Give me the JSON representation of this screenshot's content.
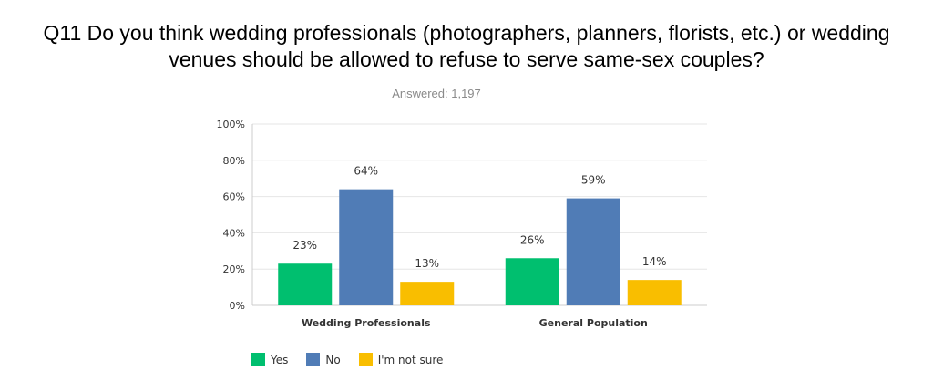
{
  "chart_data": {
    "type": "bar",
    "title_lines": [
      "Q11 Do you think wedding professionals (photographers, planners, florists, etc.) or wedding",
      "venues should be allowed to refuse to serve same-sex couples?"
    ],
    "subtitle": "Answered: 1,197",
    "categories": [
      "Wedding Professionals",
      "General Population"
    ],
    "series": [
      {
        "name": "Yes",
        "values": [
          23,
          26
        ],
        "labels": [
          "23%",
          "26%"
        ],
        "color": "#00bf6f"
      },
      {
        "name": "No",
        "values": [
          64,
          59
        ],
        "labels": [
          "64%",
          "59%"
        ],
        "color": "#507cb6"
      },
      {
        "name": "I'm not sure",
        "values": [
          13,
          14
        ],
        "labels": [
          "13%",
          "14%"
        ],
        "color": "#f9be00"
      }
    ],
    "ylim": [
      0,
      100
    ],
    "yticks": [
      {
        "value": 0,
        "label": "0%"
      },
      {
        "value": 20,
        "label": "20%"
      },
      {
        "value": 40,
        "label": "40%"
      },
      {
        "value": 60,
        "label": "60%"
      },
      {
        "value": 80,
        "label": "80%"
      },
      {
        "value": 100,
        "label": "100%"
      }
    ],
    "grid": true,
    "legend_position": "bottom-left"
  }
}
